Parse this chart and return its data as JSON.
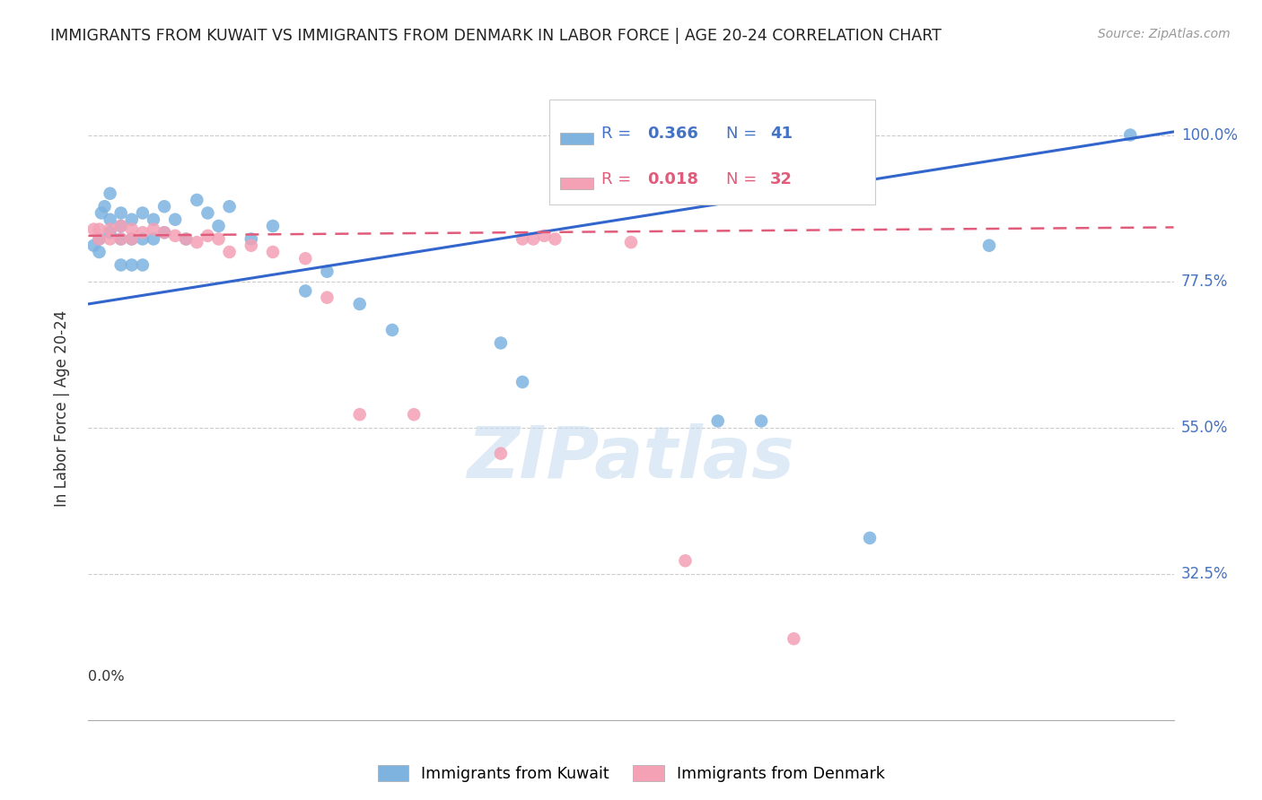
{
  "title": "IMMIGRANTS FROM KUWAIT VS IMMIGRANTS FROM DENMARK IN LABOR FORCE | AGE 20-24 CORRELATION CHART",
  "source": "Source: ZipAtlas.com",
  "ylabel": "In Labor Force | Age 20-24",
  "ytick_labels": [
    "100.0%",
    "77.5%",
    "55.0%",
    "32.5%"
  ],
  "ytick_values": [
    1.0,
    0.775,
    0.55,
    0.325
  ],
  "xlim": [
    0.0,
    0.1
  ],
  "ylim": [
    0.1,
    1.06
  ],
  "kuwait_color": "#7EB3E0",
  "denmark_color": "#F4A0B5",
  "kuwait_line_color": "#3366CC",
  "denmark_line_color": "#E05C7A",
  "background_color": "#FFFFFF",
  "grid_color": "#CCCCCC",
  "watermark": "ZIPatlas",
  "kuwait_x": [
    0.0005,
    0.001,
    0.001,
    0.0012,
    0.0015,
    0.002,
    0.002,
    0.002,
    0.003,
    0.003,
    0.003,
    0.003,
    0.004,
    0.004,
    0.004,
    0.005,
    0.005,
    0.005,
    0.006,
    0.006,
    0.007,
    0.007,
    0.008,
    0.009,
    0.01,
    0.011,
    0.012,
    0.013,
    0.015,
    0.017,
    0.02,
    0.022,
    0.025,
    0.028,
    0.038,
    0.04,
    0.058,
    0.062,
    0.072,
    0.083,
    0.096
  ],
  "kuwait_y": [
    0.83,
    0.84,
    0.82,
    0.88,
    0.89,
    0.87,
    0.85,
    0.91,
    0.88,
    0.86,
    0.84,
    0.8,
    0.87,
    0.84,
    0.8,
    0.88,
    0.84,
    0.8,
    0.87,
    0.84,
    0.89,
    0.85,
    0.87,
    0.84,
    0.9,
    0.88,
    0.86,
    0.89,
    0.84,
    0.86,
    0.76,
    0.79,
    0.74,
    0.7,
    0.68,
    0.62,
    0.56,
    0.56,
    0.38,
    0.83,
    1.0
  ],
  "denmark_x": [
    0.0005,
    0.001,
    0.001,
    0.002,
    0.002,
    0.003,
    0.003,
    0.004,
    0.004,
    0.005,
    0.006,
    0.007,
    0.008,
    0.009,
    0.01,
    0.011,
    0.012,
    0.013,
    0.015,
    0.017,
    0.02,
    0.022,
    0.025,
    0.03,
    0.038,
    0.04,
    0.041,
    0.042,
    0.043,
    0.05,
    0.055,
    0.065
  ],
  "denmark_y": [
    0.855,
    0.855,
    0.84,
    0.855,
    0.84,
    0.86,
    0.84,
    0.855,
    0.84,
    0.85,
    0.855,
    0.85,
    0.845,
    0.84,
    0.835,
    0.845,
    0.84,
    0.82,
    0.83,
    0.82,
    0.81,
    0.75,
    0.57,
    0.57,
    0.51,
    0.84,
    0.84,
    0.845,
    0.84,
    0.835,
    0.345,
    0.225
  ],
  "kuwait_line_x0": 0.0,
  "kuwait_line_x1": 0.1,
  "kuwait_line_y0": 0.74,
  "kuwait_line_y1": 1.005,
  "denmark_line_x0": 0.0,
  "denmark_line_x1": 0.1,
  "denmark_line_y0": 0.845,
  "denmark_line_y1": 0.858
}
